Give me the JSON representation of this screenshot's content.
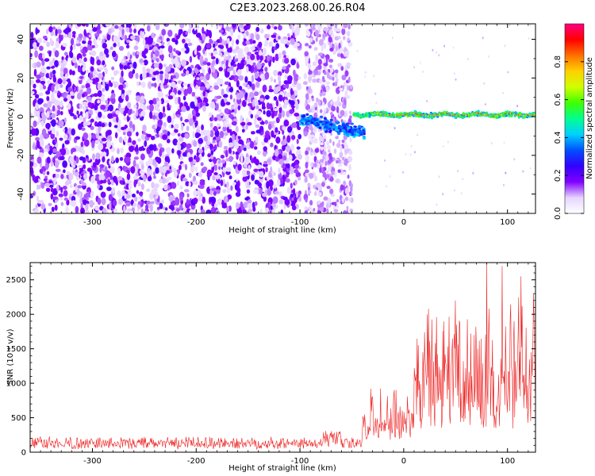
{
  "title": "C2E3.2023.268.00.26.R04",
  "colors": {
    "snr_line": "#ee2020",
    "scatter_base": "#7a00ff",
    "axis": "#000000"
  },
  "colorbar": {
    "label": "Normalized spectral amplitude",
    "range": [
      0,
      1
    ],
    "ticks": [
      "0.0",
      "0.2",
      "0.4",
      "0.6",
      "0.8"
    ],
    "colormap": [
      "#ffffff",
      "#e6d4ff",
      "#8000ff",
      "#3200ff",
      "#0050ff",
      "#00d0ff",
      "#00ff90",
      "#40ff00",
      "#d0ff00",
      "#ffd000",
      "#ff7000",
      "#ff0000",
      "#ff0080"
    ]
  },
  "chart_data": [
    {
      "type": "heatmap",
      "xlabel": "Height of straight line (km)",
      "ylabel": "Frequency (Hz)",
      "xlim": [
        -360,
        127
      ],
      "ylim": [
        -50,
        48
      ],
      "xticks": [
        -300,
        -200,
        -100,
        0,
        100
      ],
      "yticks": [
        -40,
        -20,
        0,
        20,
        40
      ],
      "regions": [
        {
          "description": "broadband noise",
          "x": [
            -360,
            -100
          ],
          "y": [
            -50,
            48
          ],
          "amplitude": [
            0.05,
            0.2
          ]
        },
        {
          "description": "noise",
          "x": [
            -95,
            -50
          ],
          "y": [
            -50,
            48
          ],
          "amplitude": [
            0.05,
            0.15
          ]
        },
        {
          "description": "echo",
          "x": [
            -100,
            -35
          ],
          "center_freq": [
            -6,
            -10
          ],
          "amplitude": [
            0.3,
            0.5
          ]
        },
        {
          "description": "narrow signal",
          "x": [
            -45,
            127
          ],
          "center_freq": 1,
          "amplitude": [
            0.4,
            1.0
          ]
        }
      ]
    },
    {
      "type": "line",
      "xlabel": "Height of straight line (km)",
      "ylabel": "SNR (10 * v/v)",
      "xlim": [
        -360,
        127
      ],
      "ylim": [
        0,
        2750
      ],
      "xticks": [
        -300,
        -200,
        -100,
        0,
        100
      ],
      "yticks": [
        0,
        500,
        1000,
        1500,
        2000,
        2500
      ],
      "segments": [
        {
          "x": [
            -360,
            -80
          ],
          "baseline": 150,
          "spread": 180
        },
        {
          "x": [
            -80,
            -60
          ],
          "baseline": 250,
          "spread": 230
        },
        {
          "x": [
            -60,
            -40
          ],
          "baseline": 170,
          "spread": 150
        },
        {
          "x": [
            -40,
            10
          ],
          "baseline": 500,
          "spread": 800
        },
        {
          "x": [
            10,
            127
          ],
          "baseline": 1000,
          "spread": 1650
        }
      ],
      "peaks": [
        {
          "x": 80,
          "y": 2750
        },
        {
          "x": 95,
          "y": 2700
        },
        {
          "x": 113,
          "y": 2550
        },
        {
          "x": 50,
          "y": 2200
        }
      ]
    }
  ]
}
